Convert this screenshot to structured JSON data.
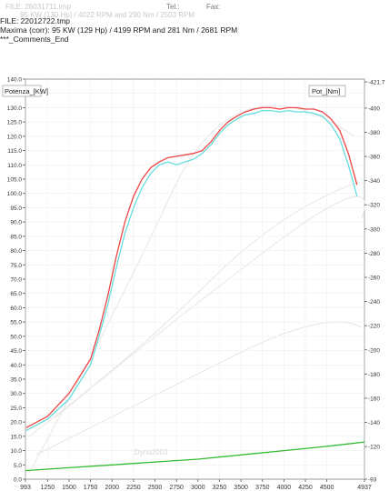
{
  "header": {
    "ghost_file": "FILE: 26031711.tmp",
    "ghost_tel": "Tel.:",
    "ghost_fax": "Fax:",
    "ghost_maxima": "95 KW (130 Hp) / 4022 RPM  and  290 Nm / 2503 RPM",
    "file_line": "FILE: 22012722.tmp",
    "maxima_line": "Maxima (corr):  95 KW (129 Hp) / 4199 RPM  and   281 Nm / 2681 RPM",
    "comments_line": "***_Comments_End",
    "ghost_watermark": "Dyno2003"
  },
  "chart_data": {
    "type": "line",
    "left_axis_label": "Potenza_[KW]",
    "right_axis_label": "Pot_[Nm]",
    "xlim": [
      993,
      4937
    ],
    "ylim_left": [
      0,
      140
    ],
    "ylim_right": [
      -93,
      424
    ],
    "x_ticks": [
      "993",
      "1250",
      "1500",
      "1750",
      "2000",
      "2250",
      "2500",
      "2750",
      "3000",
      "3250",
      "3500",
      "3750",
      "4000",
      "4250",
      "4500",
      "4937"
    ],
    "left_ticks": [
      0,
      5,
      10,
      15,
      20,
      25,
      30,
      35,
      40,
      45,
      50,
      55,
      60,
      65,
      70,
      75,
      80,
      85,
      90,
      95,
      100,
      105,
      110,
      115,
      120,
      125,
      130,
      135,
      140
    ],
    "right_ticks": [
      -93,
      -120,
      -140,
      -160,
      -180,
      -200,
      -220,
      -240,
      -260,
      -280,
      -300,
      -320,
      -340,
      -360,
      -380,
      -400,
      -421.7
    ],
    "series": [
      {
        "color": "#ee4444",
        "x": [
          1000,
          1250,
          1500,
          1750,
          1850,
          1950,
          2050,
          2150,
          2250,
          2350,
          2450,
          2550,
          2650,
          2750,
          2850,
          2950,
          3050,
          3150,
          3250,
          3350,
          3450,
          3550,
          3650,
          3750,
          3850,
          3950,
          4050,
          4150,
          4250,
          4350,
          4450,
          4550,
          4650,
          4750,
          4850
        ],
        "y": [
          18,
          22,
          30,
          42,
          52,
          64,
          78,
          90,
          99,
          105,
          109,
          111,
          112.5,
          113,
          113.5,
          114,
          115,
          118,
          122,
          125,
          127,
          128.5,
          129.5,
          130,
          130,
          129.5,
          130,
          130,
          129.5,
          129.5,
          128.5,
          126,
          122,
          114,
          103
        ]
      },
      {
        "color": "#66dddd",
        "x": [
          1000,
          1250,
          1500,
          1750,
          1850,
          1950,
          2050,
          2150,
          2250,
          2350,
          2450,
          2550,
          2650,
          2750,
          2850,
          2950,
          3050,
          3150,
          3250,
          3350,
          3450,
          3550,
          3650,
          3750,
          3850,
          3950,
          4050,
          4150,
          4250,
          4350,
          4450,
          4550,
          4650,
          4750,
          4850
        ],
        "y": [
          17,
          21,
          28,
          40,
          50,
          61,
          74,
          86,
          95,
          102,
          107,
          110,
          111,
          110,
          111,
          112,
          114,
          117,
          121,
          124,
          126,
          127.5,
          128,
          129,
          129,
          128.5,
          129,
          128.5,
          128.5,
          128,
          127,
          124,
          119,
          110,
          99
        ]
      },
      {
        "color": "#33bb33",
        "x": [
          993,
          1500,
          2000,
          2500,
          3000,
          3500,
          4000,
          4500,
          4937
        ],
        "y": [
          3,
          4,
          5,
          6,
          7,
          8.5,
          10,
          11.5,
          13
        ]
      }
    ]
  }
}
